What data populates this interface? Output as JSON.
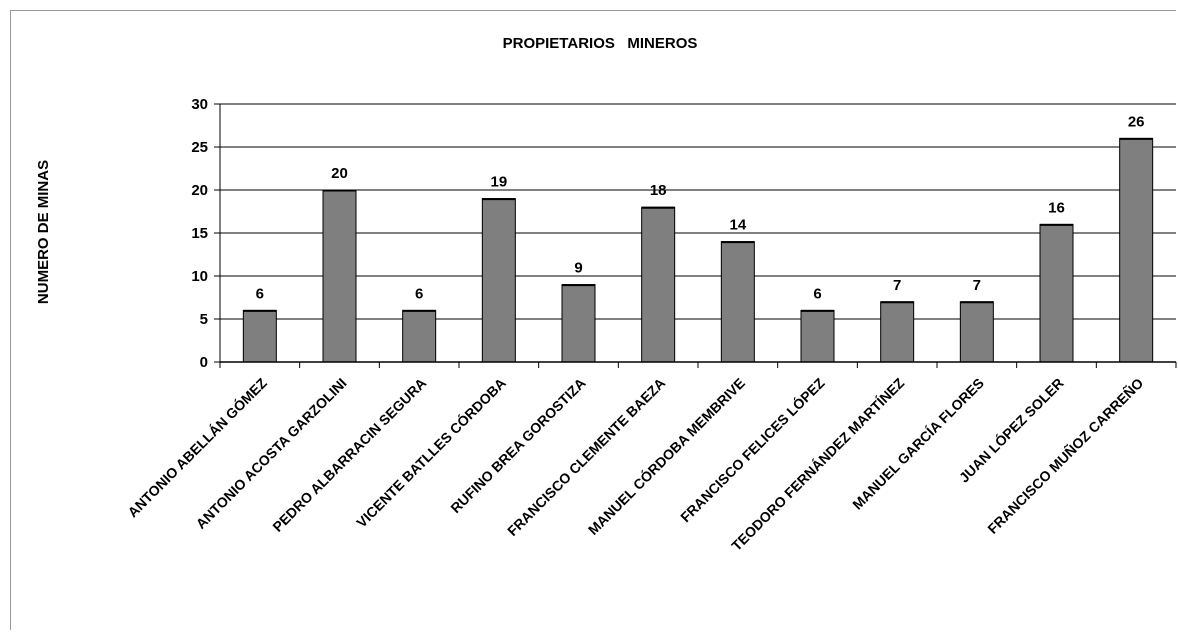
{
  "chart_data": {
    "type": "bar",
    "title": "PROPIETARIOS   MINEROS",
    "xlabel": "",
    "ylabel": "NUMERO DE MINAS",
    "ylim": [
      0,
      30
    ],
    "yticks": [
      0,
      5,
      10,
      15,
      20,
      25,
      30
    ],
    "grid": true,
    "bar_color": "#7f7f7f",
    "categories": [
      "ANTONIO ABELLÁN GÓMEZ",
      "ANTONIO ACOSTA GARZOLINI",
      "PEDRO ALBARRACIN SEGURA",
      "VICENTE BATLLES CÓRDOBA",
      "RUFINO BREA GOROSTIZA",
      "FRANCISCO CLEMENTE BAEZA",
      "MANUEL CÓRDOBA MEMBRIVE",
      "FRANCISCO FELICES LÓPEZ",
      "TEODORO FERNÁNDEZ MARTÍNEZ",
      "MANUEL GARCÍA FLORES",
      "JUAN LÓPEZ SOLER",
      "FRANCISCO MUÑOZ CARREÑO"
    ],
    "values": [
      6,
      20,
      6,
      19,
      9,
      18,
      14,
      6,
      7,
      7,
      16,
      26
    ]
  }
}
